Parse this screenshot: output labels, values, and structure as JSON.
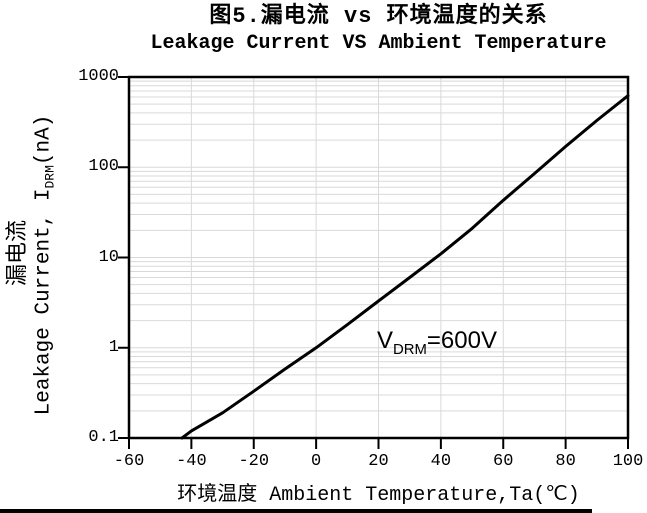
{
  "figure": {
    "title_cjk": "图5.漏电流 vs 环境温度的关系",
    "title_en": "Leakage Current VS Ambient Temperature"
  },
  "chart_data": {
    "type": "line",
    "title": "图5.漏电流 vs 环境温度的关系",
    "subtitle": "Leakage Current VS Ambient Temperature",
    "xlabel": "环境温度 Ambient Temperature,Ta(℃)",
    "ylabel": "漏电流 Leakage Current, I_DRM(nA)",
    "ylabel_parts": {
      "cjk": "漏电流",
      "pre": "Leakage Current, I",
      "sub": "DRM",
      "post": "(nA)"
    },
    "annotation": {
      "pre": "V",
      "sub": "DRM",
      "post": "=600V"
    },
    "x_axis": {
      "scale": "linear",
      "min": -60,
      "max": 100,
      "ticks": [
        -60,
        -40,
        -20,
        0,
        20,
        40,
        60,
        80,
        100
      ]
    },
    "y_axis": {
      "scale": "log",
      "min": 0.1,
      "max": 1000,
      "ticks": [
        1000,
        100,
        10,
        1,
        0.1
      ],
      "tick_labels": [
        "1000",
        "100",
        "10",
        "1",
        "0.1"
      ]
    },
    "grid": {
      "show": true,
      "color": "#d9d9d9",
      "log_minor": true,
      "legend": "none"
    },
    "axis_color": "#000000",
    "line_color": "#000000",
    "series": [
      {
        "name": "leakage-current-vs-ambient-temperature",
        "x": [
          -43,
          -40,
          -30,
          -20,
          -10,
          0,
          10,
          20,
          30,
          40,
          50,
          60,
          70,
          80,
          90,
          100
        ],
        "y": [
          0.1,
          0.12,
          0.19,
          0.33,
          0.58,
          1.0,
          1.8,
          3.3,
          6.0,
          11,
          21,
          43,
          85,
          170,
          330,
          620
        ]
      }
    ]
  }
}
